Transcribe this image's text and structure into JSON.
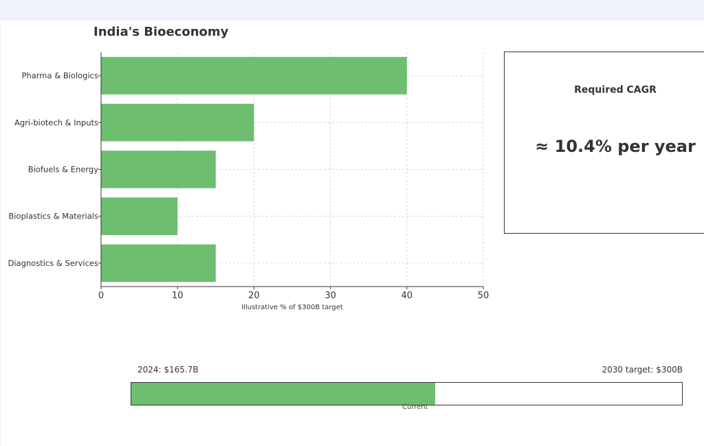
{
  "title": "India's Bioeconomy",
  "colors": {
    "bar": "#6dbe6f",
    "text": "#333333",
    "grid": "#cccccc"
  },
  "chart_data": {
    "type": "bar",
    "orientation": "horizontal",
    "categories": [
      "Pharma & Biologics",
      "Agri-biotech & Inputs",
      "Biofuels & Energy",
      "Bioplastics & Materials",
      "Diagnostics & Services"
    ],
    "values": [
      40,
      20,
      15,
      10,
      15
    ],
    "xlabel": "Illustrative % of $300B target",
    "ylabel": "",
    "xlim": [
      0,
      50
    ],
    "xticks": [
      0,
      10,
      20,
      30,
      40,
      50
    ],
    "grid": true
  },
  "cagr": {
    "label": "Required CAGR",
    "value": "≈ 10.4% per year"
  },
  "progress": {
    "left_label": "2024: $165.7B",
    "right_label": "2030 target: $300B",
    "center_label": "Current",
    "fraction": 0.5523
  }
}
